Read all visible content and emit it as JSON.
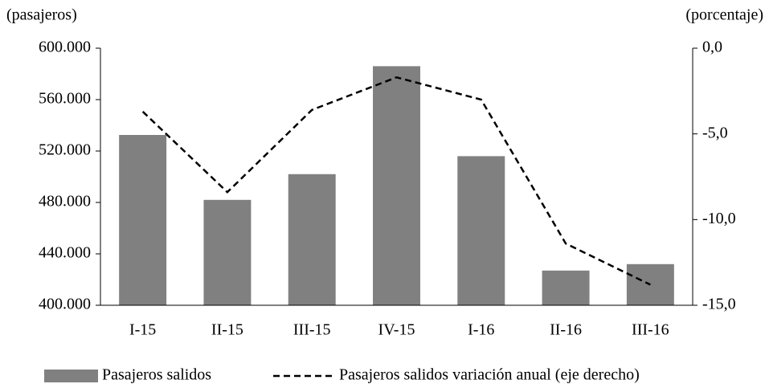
{
  "chart_data": {
    "type": "bar-line",
    "y_label": "(pasajeros)",
    "y2_label": "(porcentaje)",
    "categories": [
      "I-15",
      "II-15",
      "III-15",
      "IV-15",
      "I-16",
      "II-16",
      "III-16"
    ],
    "series": [
      {
        "name": "Pasajeros salidos",
        "type": "bar",
        "color": "#808080",
        "values": [
          532500,
          482000,
          502000,
          586000,
          516000,
          427000,
          432000
        ]
      },
      {
        "name": "Pasajeros salidos variación anual (eje derecho)",
        "type": "line",
        "axis": "y2",
        "color": "#000000",
        "dashed": true,
        "values": [
          -3.7,
          -8.4,
          -3.6,
          -1.7,
          -3.0,
          -11.4,
          -13.8
        ]
      }
    ],
    "ylim": [
      400000,
      600000
    ],
    "yticks": [
      {
        "value": 400000,
        "label": "400.000"
      },
      {
        "value": 440000,
        "label": "440.000"
      },
      {
        "value": 480000,
        "label": "480.000"
      },
      {
        "value": 520000,
        "label": "520.000"
      },
      {
        "value": 560000,
        "label": "560.000"
      },
      {
        "value": 600000,
        "label": "600.000"
      }
    ],
    "y2lim": [
      -15,
      0
    ],
    "y2ticks": [
      {
        "value": -15,
        "label": "-15,0"
      },
      {
        "value": -10,
        "label": "-10,0"
      },
      {
        "value": -5,
        "label": "-5,0"
      },
      {
        "value": 0,
        "label": "0,0"
      }
    ],
    "grid": false,
    "legend": "bottom"
  }
}
